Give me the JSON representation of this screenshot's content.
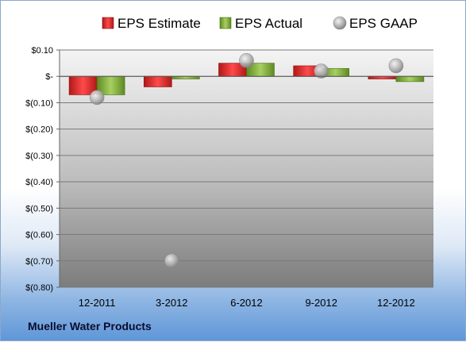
{
  "company_label": "Mueller Water Products",
  "colors": {
    "estimate": "#d42a2a",
    "actual": "#7fa839",
    "gaap": "#b5b5b5"
  },
  "chart_data": {
    "type": "bar",
    "categories": [
      "12-2011",
      "3-2012",
      "6-2012",
      "9-2012",
      "12-2012"
    ],
    "series": [
      {
        "name": "EPS Estimate",
        "kind": "bar",
        "values": [
          -0.07,
          -0.04,
          0.05,
          0.04,
          -0.01
        ]
      },
      {
        "name": "EPS Actual",
        "kind": "bar",
        "values": [
          -0.07,
          -0.01,
          0.05,
          0.03,
          -0.02
        ]
      },
      {
        "name": "EPS GAAP",
        "kind": "scatter",
        "values": [
          -0.08,
          -0.7,
          0.06,
          0.02,
          0.04
        ]
      }
    ],
    "ylim": [
      -0.8,
      0.1
    ],
    "yticks": [
      0.1,
      0,
      -0.1,
      -0.2,
      -0.3,
      -0.4,
      -0.5,
      -0.6,
      -0.7,
      -0.8
    ],
    "ytick_labels": [
      "$0.10",
      "$-",
      "$(0.10)",
      "$(0.20)",
      "$(0.30)",
      "$(0.40)",
      "$(0.50)",
      "$(0.60)",
      "$(0.70)",
      "$(0.80)"
    ],
    "legend_position": "top",
    "grid": true
  }
}
